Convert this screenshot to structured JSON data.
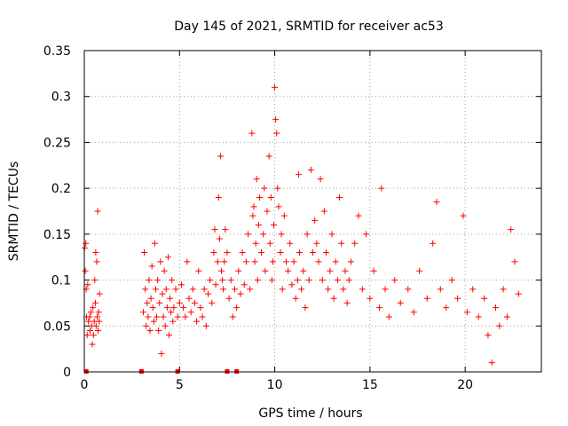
{
  "chart_data": {
    "type": "scatter",
    "title": "Day 145 of 2021, SRMTID for receiver ac53",
    "xlabel": "GPS time / hours",
    "ylabel": "SRMTID / TECUs",
    "xlim": [
      0,
      24
    ],
    "ylim": [
      0,
      0.35
    ],
    "grid": true,
    "marker": "+",
    "color": "#ff0000",
    "xticks": [
      0,
      5,
      10,
      15,
      20
    ],
    "yticks": [
      0,
      0.05,
      0.1,
      0.15,
      0.2,
      0.25,
      0.3,
      0.35
    ],
    "zero_markers_x": [
      0.1,
      3.0,
      4.9,
      7.5,
      8.0
    ],
    "series": [
      {
        "name": "SRMTID",
        "points": [
          [
            0.02,
            0.135
          ],
          [
            0.05,
            0.11
          ],
          [
            0.08,
            0.14
          ],
          [
            0.1,
            0.09
          ],
          [
            0.12,
            0.06
          ],
          [
            0.15,
            0.04
          ],
          [
            0.18,
            0.095
          ],
          [
            0.22,
            0.055
          ],
          [
            0.28,
            0.06
          ],
          [
            0.3,
            0.045
          ],
          [
            0.35,
            0.065
          ],
          [
            0.38,
            0.05
          ],
          [
            0.42,
            0.03
          ],
          [
            0.45,
            0.07
          ],
          [
            0.48,
            0.04
          ],
          [
            0.52,
            0.055
          ],
          [
            0.55,
            0.1
          ],
          [
            0.58,
            0.075
          ],
          [
            0.6,
            0.13
          ],
          [
            0.62,
            0.05
          ],
          [
            0.65,
            0.12
          ],
          [
            0.68,
            0.06
          ],
          [
            0.7,
            0.175
          ],
          [
            0.72,
            0.045
          ],
          [
            0.75,
            0.065
          ],
          [
            0.78,
            0.055
          ],
          [
            0.8,
            0.085
          ],
          [
            3.1,
            0.065
          ],
          [
            3.15,
            0.13
          ],
          [
            3.2,
            0.09
          ],
          [
            3.25,
            0.05
          ],
          [
            3.3,
            0.075
          ],
          [
            3.35,
            0.06
          ],
          [
            3.4,
            0.1
          ],
          [
            3.45,
            0.045
          ],
          [
            3.5,
            0.08
          ],
          [
            3.55,
            0.115
          ],
          [
            3.6,
            0.07
          ],
          [
            3.65,
            0.055
          ],
          [
            3.7,
            0.14
          ],
          [
            3.75,
            0.09
          ],
          [
            3.8,
            0.06
          ],
          [
            3.85,
            0.1
          ],
          [
            3.9,
            0.045
          ],
          [
            3.95,
            0.075
          ],
          [
            4.0,
            0.12
          ],
          [
            4.05,
            0.02
          ],
          [
            4.1,
            0.085
          ],
          [
            4.15,
            0.06
          ],
          [
            4.2,
            0.11
          ],
          [
            4.25,
            0.05
          ],
          [
            4.3,
            0.09
          ],
          [
            4.35,
            0.07
          ],
          [
            4.4,
            0.125
          ],
          [
            4.45,
            0.04
          ],
          [
            4.5,
            0.08
          ],
          [
            4.55,
            0.065
          ],
          [
            4.6,
            0.1
          ],
          [
            4.65,
            0.055
          ],
          [
            4.7,
            0.07
          ],
          [
            4.8,
            0.09
          ],
          [
            4.9,
            0.06
          ],
          [
            5.0,
            0.075
          ],
          [
            5.1,
            0.095
          ],
          [
            5.2,
            0.07
          ],
          [
            5.3,
            0.06
          ],
          [
            5.4,
            0.12
          ],
          [
            5.5,
            0.08
          ],
          [
            5.6,
            0.065
          ],
          [
            5.7,
            0.09
          ],
          [
            5.8,
            0.075
          ],
          [
            5.9,
            0.055
          ],
          [
            6.0,
            0.11
          ],
          [
            6.1,
            0.07
          ],
          [
            6.2,
            0.06
          ],
          [
            6.3,
            0.09
          ],
          [
            6.4,
            0.05
          ],
          [
            6.5,
            0.085
          ],
          [
            6.6,
            0.1
          ],
          [
            6.7,
            0.075
          ],
          [
            6.8,
            0.13
          ],
          [
            6.85,
            0.155
          ],
          [
            6.9,
            0.095
          ],
          [
            7.0,
            0.12
          ],
          [
            7.05,
            0.19
          ],
          [
            7.1,
            0.145
          ],
          [
            7.15,
            0.235
          ],
          [
            7.2,
            0.11
          ],
          [
            7.25,
            0.1
          ],
          [
            7.3,
            0.09
          ],
          [
            7.35,
            0.12
          ],
          [
            7.4,
            0.155
          ],
          [
            7.5,
            0.13
          ],
          [
            7.6,
            0.08
          ],
          [
            7.7,
            0.1
          ],
          [
            7.8,
            0.06
          ],
          [
            7.9,
            0.09
          ],
          [
            8.0,
            0.07
          ],
          [
            8.1,
            0.11
          ],
          [
            8.2,
            0.085
          ],
          [
            8.3,
            0.13
          ],
          [
            8.4,
            0.095
          ],
          [
            8.5,
            0.12
          ],
          [
            8.6,
            0.15
          ],
          [
            8.7,
            0.09
          ],
          [
            8.8,
            0.26
          ],
          [
            8.85,
            0.17
          ],
          [
            8.9,
            0.18
          ],
          [
            8.95,
            0.12
          ],
          [
            9.0,
            0.14
          ],
          [
            9.05,
            0.21
          ],
          [
            9.1,
            0.1
          ],
          [
            9.15,
            0.16
          ],
          [
            9.2,
            0.19
          ],
          [
            9.3,
            0.13
          ],
          [
            9.4,
            0.15
          ],
          [
            9.45,
            0.2
          ],
          [
            9.5,
            0.11
          ],
          [
            9.6,
            0.175
          ],
          [
            9.7,
            0.235
          ],
          [
            9.75,
            0.14
          ],
          [
            9.8,
            0.19
          ],
          [
            9.85,
            0.1
          ],
          [
            9.9,
            0.12
          ],
          [
            9.95,
            0.16
          ],
          [
            10.0,
            0.31
          ],
          [
            10.05,
            0.275
          ],
          [
            10.1,
            0.26
          ],
          [
            10.15,
            0.2
          ],
          [
            10.2,
            0.18
          ],
          [
            10.3,
            0.13
          ],
          [
            10.35,
            0.15
          ],
          [
            10.4,
            0.09
          ],
          [
            10.5,
            0.17
          ],
          [
            10.6,
            0.12
          ],
          [
            10.7,
            0.11
          ],
          [
            10.8,
            0.14
          ],
          [
            10.9,
            0.095
          ],
          [
            11.0,
            0.12
          ],
          [
            11.1,
            0.08
          ],
          [
            11.2,
            0.1
          ],
          [
            11.25,
            0.215
          ],
          [
            11.3,
            0.13
          ],
          [
            11.4,
            0.09
          ],
          [
            11.5,
            0.11
          ],
          [
            11.6,
            0.07
          ],
          [
            11.7,
            0.15
          ],
          [
            11.8,
            0.1
          ],
          [
            11.9,
            0.22
          ],
          [
            12.0,
            0.13
          ],
          [
            12.1,
            0.165
          ],
          [
            12.2,
            0.14
          ],
          [
            12.3,
            0.12
          ],
          [
            12.4,
            0.21
          ],
          [
            12.5,
            0.1
          ],
          [
            12.6,
            0.175
          ],
          [
            12.7,
            0.13
          ],
          [
            12.8,
            0.09
          ],
          [
            12.9,
            0.11
          ],
          [
            13.0,
            0.15
          ],
          [
            13.1,
            0.08
          ],
          [
            13.2,
            0.12
          ],
          [
            13.3,
            0.1
          ],
          [
            13.4,
            0.19
          ],
          [
            13.5,
            0.14
          ],
          [
            13.6,
            0.09
          ],
          [
            13.7,
            0.11
          ],
          [
            13.8,
            0.075
          ],
          [
            13.9,
            0.1
          ],
          [
            14.0,
            0.12
          ],
          [
            14.2,
            0.14
          ],
          [
            14.4,
            0.17
          ],
          [
            14.6,
            0.09
          ],
          [
            14.8,
            0.15
          ],
          [
            15.0,
            0.08
          ],
          [
            15.2,
            0.11
          ],
          [
            15.5,
            0.07
          ],
          [
            15.6,
            0.2
          ],
          [
            15.8,
            0.09
          ],
          [
            16.0,
            0.06
          ],
          [
            16.3,
            0.1
          ],
          [
            16.6,
            0.075
          ],
          [
            17.0,
            0.09
          ],
          [
            17.3,
            0.065
          ],
          [
            17.6,
            0.11
          ],
          [
            18.0,
            0.08
          ],
          [
            18.3,
            0.14
          ],
          [
            18.5,
            0.185
          ],
          [
            18.7,
            0.09
          ],
          [
            19.0,
            0.07
          ],
          [
            19.3,
            0.1
          ],
          [
            19.6,
            0.08
          ],
          [
            19.9,
            0.17
          ],
          [
            20.1,
            0.065
          ],
          [
            20.4,
            0.09
          ],
          [
            20.7,
            0.06
          ],
          [
            21.0,
            0.08
          ],
          [
            21.2,
            0.04
          ],
          [
            21.4,
            0.01
          ],
          [
            21.6,
            0.07
          ],
          [
            21.8,
            0.05
          ],
          [
            22.0,
            0.09
          ],
          [
            22.2,
            0.06
          ],
          [
            22.4,
            0.155
          ],
          [
            22.6,
            0.12
          ],
          [
            22.8,
            0.085
          ]
        ]
      }
    ]
  }
}
